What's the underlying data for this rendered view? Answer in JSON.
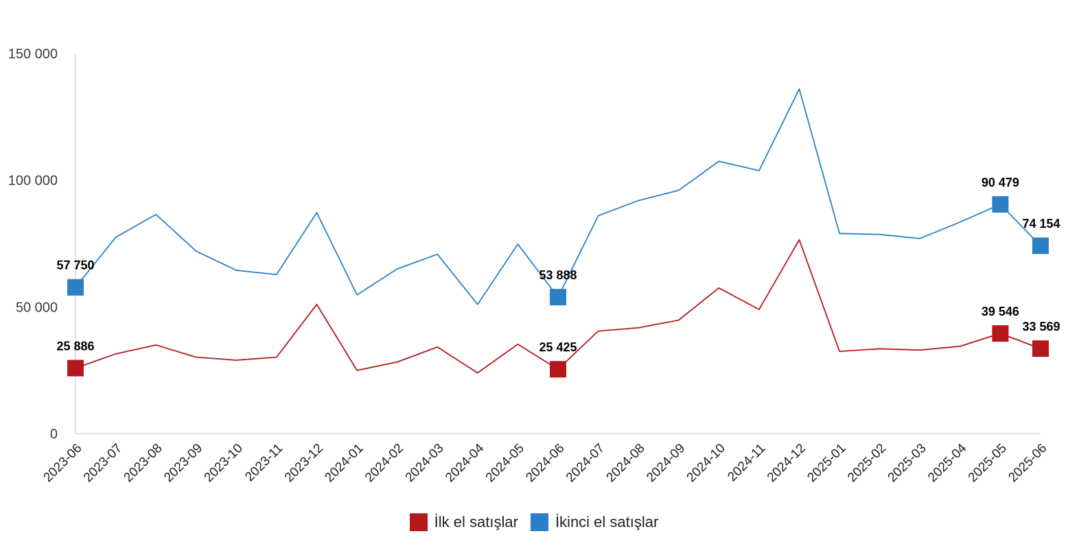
{
  "chart_data": {
    "type": "line",
    "title": "",
    "xlabel": "",
    "ylabel": "",
    "ylim": [
      0,
      150000
    ],
    "yticks": [
      0,
      50000,
      100000,
      150000
    ],
    "ytick_labels": [
      "0",
      "50 000",
      "100 000",
      "150 000"
    ],
    "grid": false,
    "legend_position": "bottom",
    "categories": [
      "2023-06",
      "2023-07",
      "2023-08",
      "2023-09",
      "2023-10",
      "2023-11",
      "2023-12",
      "2024-01",
      "2024-02",
      "2024-03",
      "2024-04",
      "2024-05",
      "2024-06",
      "2024-07",
      "2024-08",
      "2024-09",
      "2024-10",
      "2024-11",
      "2024-12",
      "2025-01",
      "2025-02",
      "2025-03",
      "2025-04",
      "2025-05",
      "2025-06"
    ],
    "series": [
      {
        "name": "İlk el satışlar",
        "color": "#b5171b",
        "values": [
          25886,
          31500,
          35000,
          30200,
          29000,
          30200,
          51000,
          25000,
          28300,
          34200,
          24000,
          35300,
          25425,
          40500,
          41800,
          44800,
          57500,
          49000,
          76500,
          32500,
          33500,
          33000,
          34500,
          39546,
          33569
        ],
        "data_labels": [
          {
            "index": 0,
            "text": "25 886"
          },
          {
            "index": 12,
            "text": "25 425"
          },
          {
            "index": 23,
            "text": "39 546"
          },
          {
            "index": 24,
            "text": "33 569"
          }
        ]
      },
      {
        "name": "İkinci el satışlar",
        "color": "#2a7fc6",
        "values": [
          57750,
          77500,
          86500,
          72000,
          64500,
          62800,
          87200,
          54800,
          65000,
          70800,
          51000,
          74800,
          53888,
          86000,
          92000,
          96000,
          107500,
          103800,
          136000,
          79000,
          78600,
          77000,
          83500,
          90479,
          74154
        ],
        "data_labels": [
          {
            "index": 0,
            "text": "57 750"
          },
          {
            "index": 12,
            "text": "53 888"
          },
          {
            "index": 23,
            "text": "90 479"
          },
          {
            "index": 24,
            "text": "74 154"
          }
        ]
      }
    ]
  }
}
